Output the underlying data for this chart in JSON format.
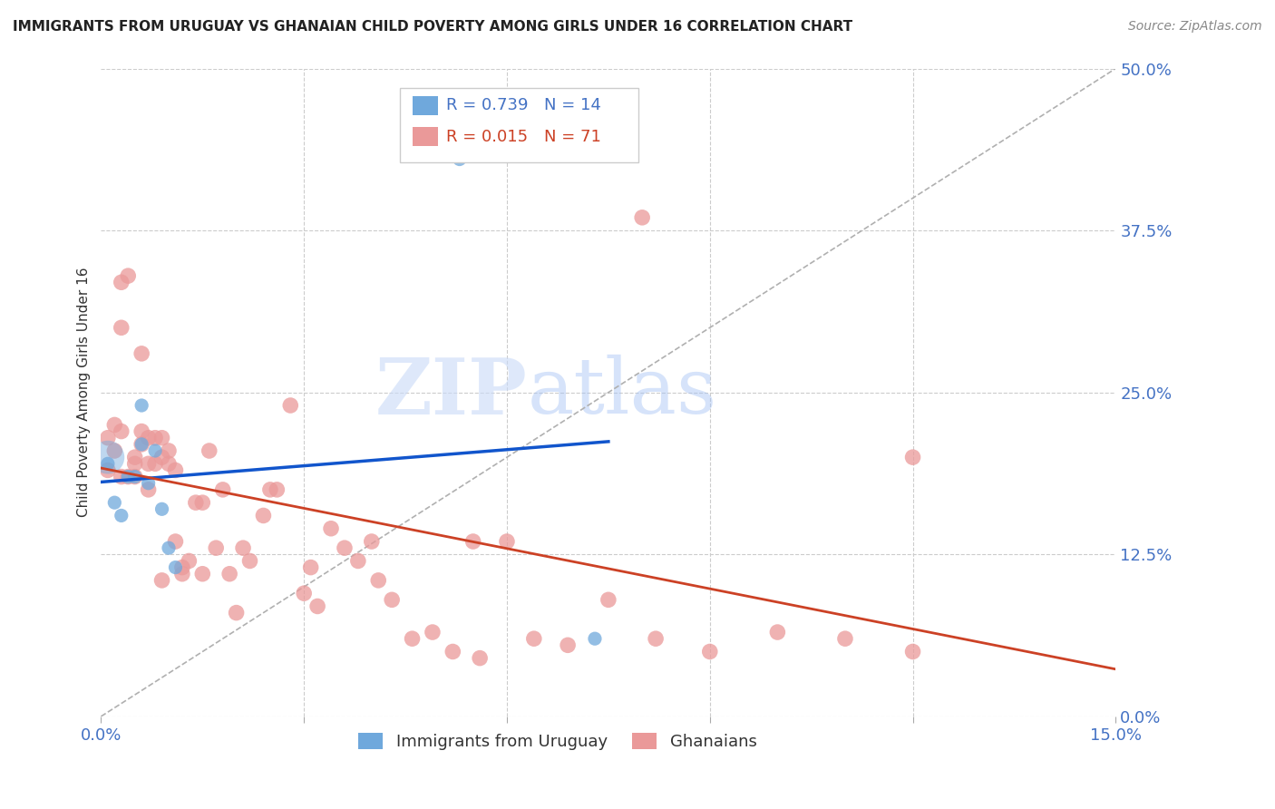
{
  "title": "IMMIGRANTS FROM URUGUAY VS GHANAIAN CHILD POVERTY AMONG GIRLS UNDER 16 CORRELATION CHART",
  "source": "Source: ZipAtlas.com",
  "ylabel": "Child Poverty Among Girls Under 16",
  "xlim": [
    0.0,
    0.15
  ],
  "ylim": [
    0.0,
    0.5
  ],
  "yticks_right": [
    0.0,
    0.125,
    0.25,
    0.375,
    0.5
  ],
  "ytick_labels_right": [
    "0.0%",
    "12.5%",
    "25.0%",
    "37.5%",
    "50.0%"
  ],
  "xtick_vals": [
    0.0,
    0.15
  ],
  "xtick_labels": [
    "0.0%",
    "15.0%"
  ],
  "grid_color": "#cccccc",
  "background_color": "#ffffff",
  "watermark_zip": "ZIP",
  "watermark_atlas": "atlas",
  "legend_r1": "R = 0.739",
  "legend_n1": "N = 14",
  "legend_r2": "R = 0.015",
  "legend_n2": "N = 71",
  "blue_color": "#6fa8dc",
  "pink_color": "#ea9999",
  "blue_line_color": "#1155cc",
  "pink_line_color": "#cc4125",
  "dashed_line_color": "#b0b0b0",
  "blue_scatter_x": [
    0.001,
    0.002,
    0.003,
    0.004,
    0.005,
    0.006,
    0.006,
    0.007,
    0.008,
    0.009,
    0.01,
    0.011,
    0.053,
    0.073
  ],
  "blue_scatter_y": [
    0.195,
    0.165,
    0.155,
    0.185,
    0.185,
    0.21,
    0.24,
    0.18,
    0.205,
    0.16,
    0.13,
    0.115,
    0.43,
    0.06
  ],
  "blue_scatter_size": 120,
  "blue_large_x": [
    0.001
  ],
  "blue_large_y": [
    0.2
  ],
  "blue_large_size": 700,
  "pink_scatter_x": [
    0.001,
    0.001,
    0.002,
    0.002,
    0.003,
    0.003,
    0.004,
    0.004,
    0.005,
    0.005,
    0.006,
    0.006,
    0.006,
    0.007,
    0.007,
    0.008,
    0.008,
    0.009,
    0.009,
    0.01,
    0.01,
    0.011,
    0.011,
    0.012,
    0.013,
    0.014,
    0.015,
    0.016,
    0.017,
    0.018,
    0.02,
    0.021,
    0.022,
    0.024,
    0.026,
    0.028,
    0.03,
    0.032,
    0.034,
    0.036,
    0.038,
    0.04,
    0.043,
    0.046,
    0.049,
    0.052,
    0.056,
    0.06,
    0.064,
    0.069,
    0.075,
    0.082,
    0.09,
    0.1,
    0.11,
    0.12,
    0.003,
    0.003,
    0.005,
    0.007,
    0.009,
    0.012,
    0.015,
    0.019,
    0.025,
    0.031,
    0.041,
    0.055,
    0.065,
    0.08,
    0.12
  ],
  "pink_scatter_y": [
    0.19,
    0.215,
    0.205,
    0.225,
    0.185,
    0.22,
    0.34,
    0.185,
    0.2,
    0.195,
    0.21,
    0.22,
    0.28,
    0.195,
    0.175,
    0.215,
    0.195,
    0.2,
    0.215,
    0.205,
    0.195,
    0.19,
    0.135,
    0.11,
    0.12,
    0.165,
    0.165,
    0.205,
    0.13,
    0.175,
    0.08,
    0.13,
    0.12,
    0.155,
    0.175,
    0.24,
    0.095,
    0.085,
    0.145,
    0.13,
    0.12,
    0.135,
    0.09,
    0.06,
    0.065,
    0.05,
    0.045,
    0.135,
    0.06,
    0.055,
    0.09,
    0.06,
    0.05,
    0.065,
    0.06,
    0.05,
    0.3,
    0.335,
    0.185,
    0.215,
    0.105,
    0.115,
    0.11,
    0.11,
    0.175,
    0.115,
    0.105,
    0.135,
    0.44,
    0.385,
    0.2
  ],
  "pink_scatter_size": 160
}
